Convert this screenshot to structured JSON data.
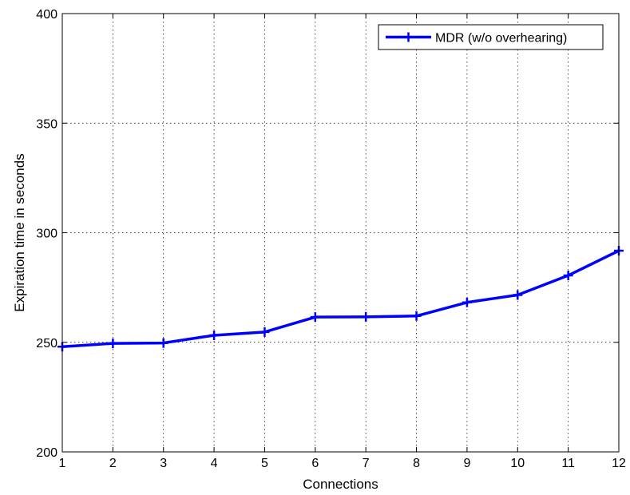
{
  "chart_data": {
    "type": "line",
    "title": "",
    "xlabel": "Connections",
    "ylabel": "Expiration time in seconds",
    "xlim": [
      1,
      12
    ],
    "ylim": [
      200,
      400
    ],
    "xticks": [
      1,
      2,
      3,
      4,
      5,
      6,
      7,
      8,
      9,
      10,
      11,
      12
    ],
    "yticks": [
      200,
      250,
      300,
      350,
      400
    ],
    "xtick_labels": [
      "1",
      "2",
      "3",
      "4",
      "5",
      "6",
      "7",
      "8",
      "9",
      "10",
      "11",
      "12"
    ],
    "ytick_labels": [
      "200",
      "250",
      "300",
      "350",
      "400"
    ],
    "grid": true,
    "legend_position": "top-right",
    "series": [
      {
        "name": "MDR (w/o overhearing)",
        "color": "#0000ff",
        "marker": "plus",
        "x": [
          1,
          2,
          3,
          4,
          5,
          6,
          7,
          8,
          9,
          10,
          11,
          12
        ],
        "values": [
          248,
          249.5,
          249.7,
          253.2,
          254.7,
          261.5,
          261.6,
          262,
          268.2,
          271.6,
          280.5,
          291.8
        ]
      }
    ]
  }
}
